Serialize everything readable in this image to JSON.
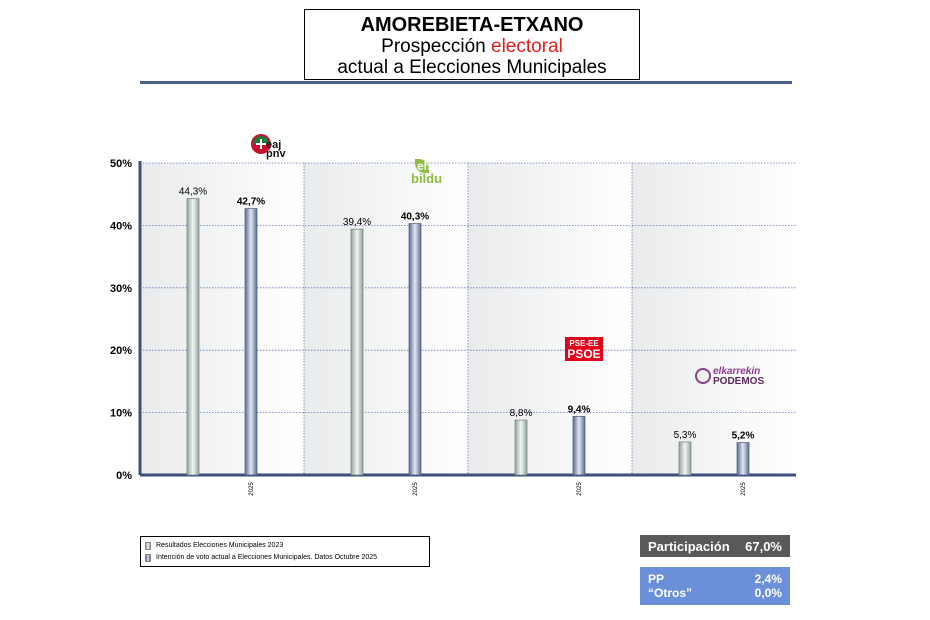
{
  "header": {
    "title": "AMOREBIETA-ETXANO",
    "subtitle_before": "Prospección ",
    "subtitle_accent": "electoral",
    "subtitle_line2": "actual a Elecciones Municipales"
  },
  "chart_data": {
    "type": "bar",
    "title": "",
    "xlabel": "",
    "ylabel": "",
    "ylim": [
      0,
      50
    ],
    "yticks": [
      "0%",
      "10%",
      "20%",
      "30%",
      "40%",
      "50%"
    ],
    "grid": true,
    "categories": [
      "EAJ-PNV",
      "EH Bildu",
      "PSE-EE PSOE",
      "Elkarrekin Podemos"
    ],
    "category_tick_labels": [
      "2025",
      "2025",
      "2025",
      "2025"
    ],
    "series": [
      {
        "name": "Resultados Elecciones Municipales 2023",
        "values": [
          44.3,
          39.4,
          8.8,
          5.3
        ],
        "labels": [
          "44,3%",
          "39,4%",
          "8,8%",
          "5,3%"
        ],
        "color": "#a9bbb4"
      },
      {
        "name": "Intención de voto actual a Elecciones Municipales. Datos Octubre 2025",
        "values": [
          42.7,
          40.3,
          9.4,
          5.2
        ],
        "labels": [
          "42,7%",
          "40,3%",
          "9,4%",
          "5,2%"
        ],
        "color": "#7b86ad"
      }
    ]
  },
  "logos": {
    "eaj": [
      "eaj",
      "pnv"
    ],
    "bildu": [
      "eh",
      "bildu"
    ],
    "psoe": [
      "PSE-EE",
      "PSOE"
    ],
    "podemos": [
      "elkarrekin",
      "PODEMOS"
    ]
  },
  "legend": {
    "items": [
      "Resultados Elecciones Municipales 2023",
      "Intención de voto actual a Elecciones Municipales. Datos Octubre 2025"
    ]
  },
  "participation": {
    "label": "Participación",
    "value": "67,0%"
  },
  "others": [
    {
      "label": "PP",
      "value": "2,4%"
    },
    {
      "label": "“Otros”",
      "value": "0,0%"
    }
  ],
  "colors": {
    "accent_red": "#e0201b",
    "title_rule": "#4a5f8c",
    "participation_bg": "#58595b",
    "others_bg": "#6b8fd9"
  }
}
